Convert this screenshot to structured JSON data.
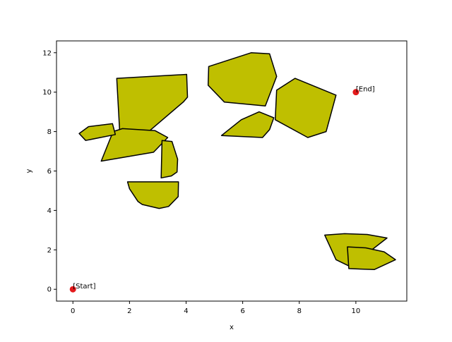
{
  "chart_data": {
    "type": "scatter",
    "title": "",
    "xlabel": "x",
    "ylabel": "y",
    "xlim": [
      -0.58,
      11.8
    ],
    "ylim": [
      -0.6,
      12.6
    ],
    "x_ticks": [
      0,
      2,
      4,
      6,
      8,
      10
    ],
    "y_ticks": [
      0,
      2,
      4,
      6,
      8,
      10,
      12
    ],
    "grid": false,
    "points": [
      {
        "label": "[Start]",
        "x": 0,
        "y": 0
      },
      {
        "label": "[End]",
        "x": 10,
        "y": 10
      }
    ],
    "obstacles": [
      [
        [
          1.55,
          10.7
        ],
        [
          4.02,
          10.9
        ],
        [
          4.05,
          9.75
        ],
        [
          3.9,
          9.5
        ],
        [
          1.7,
          6.8
        ]
      ],
      [
        [
          1.0,
          6.5
        ],
        [
          2.85,
          6.95
        ],
        [
          3.35,
          7.7
        ],
        [
          2.9,
          8.05
        ],
        [
          1.75,
          8.15
        ],
        [
          1.42,
          8.0
        ]
      ],
      [
        [
          0.22,
          7.9
        ],
        [
          0.55,
          8.25
        ],
        [
          1.4,
          8.4
        ],
        [
          1.5,
          7.85
        ],
        [
          0.45,
          7.55
        ]
      ],
      [
        [
          3.15,
          7.55
        ],
        [
          3.5,
          7.5
        ],
        [
          3.7,
          6.6
        ],
        [
          3.68,
          5.95
        ],
        [
          3.48,
          5.75
        ],
        [
          3.12,
          5.65
        ]
      ],
      [
        [
          1.93,
          5.45
        ],
        [
          3.73,
          5.45
        ],
        [
          3.72,
          4.7
        ],
        [
          3.38,
          4.2
        ],
        [
          3.05,
          4.1
        ],
        [
          2.45,
          4.3
        ],
        [
          2.3,
          4.45
        ],
        [
          2.0,
          5.1
        ]
      ],
      [
        [
          4.8,
          11.3
        ],
        [
          6.3,
          12.0
        ],
        [
          6.95,
          11.95
        ],
        [
          7.2,
          10.8
        ],
        [
          6.8,
          9.3
        ],
        [
          5.35,
          9.5
        ],
        [
          4.78,
          10.35
        ]
      ],
      [
        [
          5.95,
          8.6
        ],
        [
          6.58,
          9.0
        ],
        [
          7.1,
          8.7
        ],
        [
          6.95,
          8.1
        ],
        [
          6.7,
          7.7
        ],
        [
          5.25,
          7.8
        ]
      ],
      [
        [
          7.2,
          10.1
        ],
        [
          7.85,
          10.7
        ],
        [
          9.3,
          9.85
        ],
        [
          8.95,
          8.0
        ],
        [
          8.3,
          7.7
        ],
        [
          7.15,
          8.6
        ]
      ],
      [
        [
          8.9,
          2.75
        ],
        [
          9.6,
          2.82
        ],
        [
          10.4,
          2.78
        ],
        [
          11.1,
          2.6
        ],
        [
          9.8,
          1.15
        ],
        [
          9.3,
          1.5
        ]
      ],
      [
        [
          9.75,
          1.05
        ],
        [
          10.65,
          1.0
        ],
        [
          11.4,
          1.5
        ],
        [
          11.0,
          1.9
        ],
        [
          10.35,
          2.1
        ],
        [
          9.7,
          2.15
        ]
      ]
    ]
  }
}
